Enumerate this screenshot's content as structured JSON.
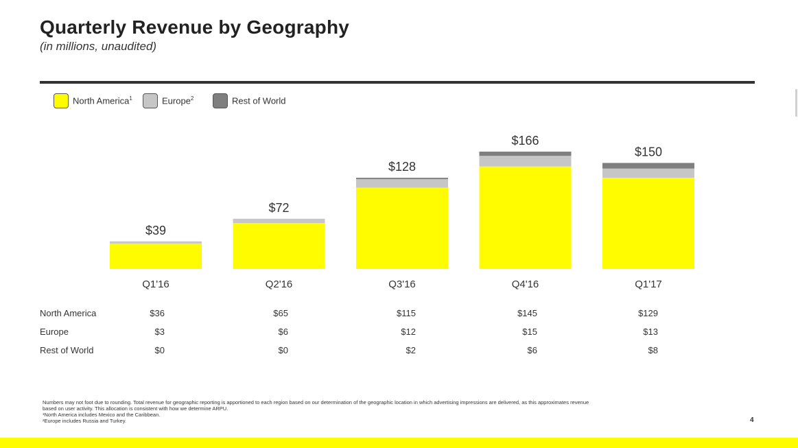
{
  "header": {
    "title": "Quarterly Revenue by Geography",
    "subtitle": "(in millions, unaudited)"
  },
  "legend": {
    "items": [
      {
        "label": "North America",
        "sup": "1",
        "color": "#fffc00"
      },
      {
        "label": "Europe",
        "sup": "2",
        "color": "#c6c6c6"
      },
      {
        "label": "Rest of World",
        "sup": "",
        "color": "#7f7f7f"
      }
    ]
  },
  "chart_data": {
    "type": "bar",
    "stacked": true,
    "title": "Quarterly Revenue by Geography",
    "subtitle": "(in millions, unaudited)",
    "categories": [
      "Q1'16",
      "Q2'16",
      "Q3'16",
      "Q4'16",
      "Q1'17"
    ],
    "series": [
      {
        "name": "North America",
        "color": "#fffc00",
        "values": [
          36,
          65,
          115,
          145,
          129
        ]
      },
      {
        "name": "Europe",
        "color": "#c6c6c6",
        "values": [
          3,
          6,
          12,
          15,
          13
        ]
      },
      {
        "name": "Rest of World",
        "color": "#7f7f7f",
        "values": [
          0,
          0,
          2,
          6,
          8
        ]
      }
    ],
    "totals": [
      39,
      72,
      128,
      166,
      150
    ],
    "total_labels": [
      "$39",
      "$72",
      "$128",
      "$166",
      "$150"
    ],
    "xlabel": "",
    "ylabel": "",
    "ylim": [
      0,
      166
    ],
    "grid": false,
    "legend_position": "top-left"
  },
  "table": {
    "rows": [
      {
        "label": "North America",
        "values": [
          "$36",
          "$65",
          "$115",
          "$145",
          "$129"
        ]
      },
      {
        "label": "Europe",
        "values": [
          "$3",
          "$6",
          "$12",
          "$15",
          "$13"
        ]
      },
      {
        "label": "Rest of World",
        "values": [
          "$0",
          "$0",
          "$2",
          "$6",
          "$8"
        ]
      }
    ]
  },
  "footnotes": {
    "lines": [
      "Numbers may not foot due to rounding.  Total revenue for geographic reporting is apportioned to each region based on our determination of the geographic location in which advertising impressions are delivered, as this approximates revenue",
      "based on user activity.  This allocation is consistent with how we determine ARPU.",
      "¹North America includes Mexico and the Caribbean.",
      "²Europe includes Russia and Turkey."
    ]
  },
  "page": {
    "number": "4"
  }
}
